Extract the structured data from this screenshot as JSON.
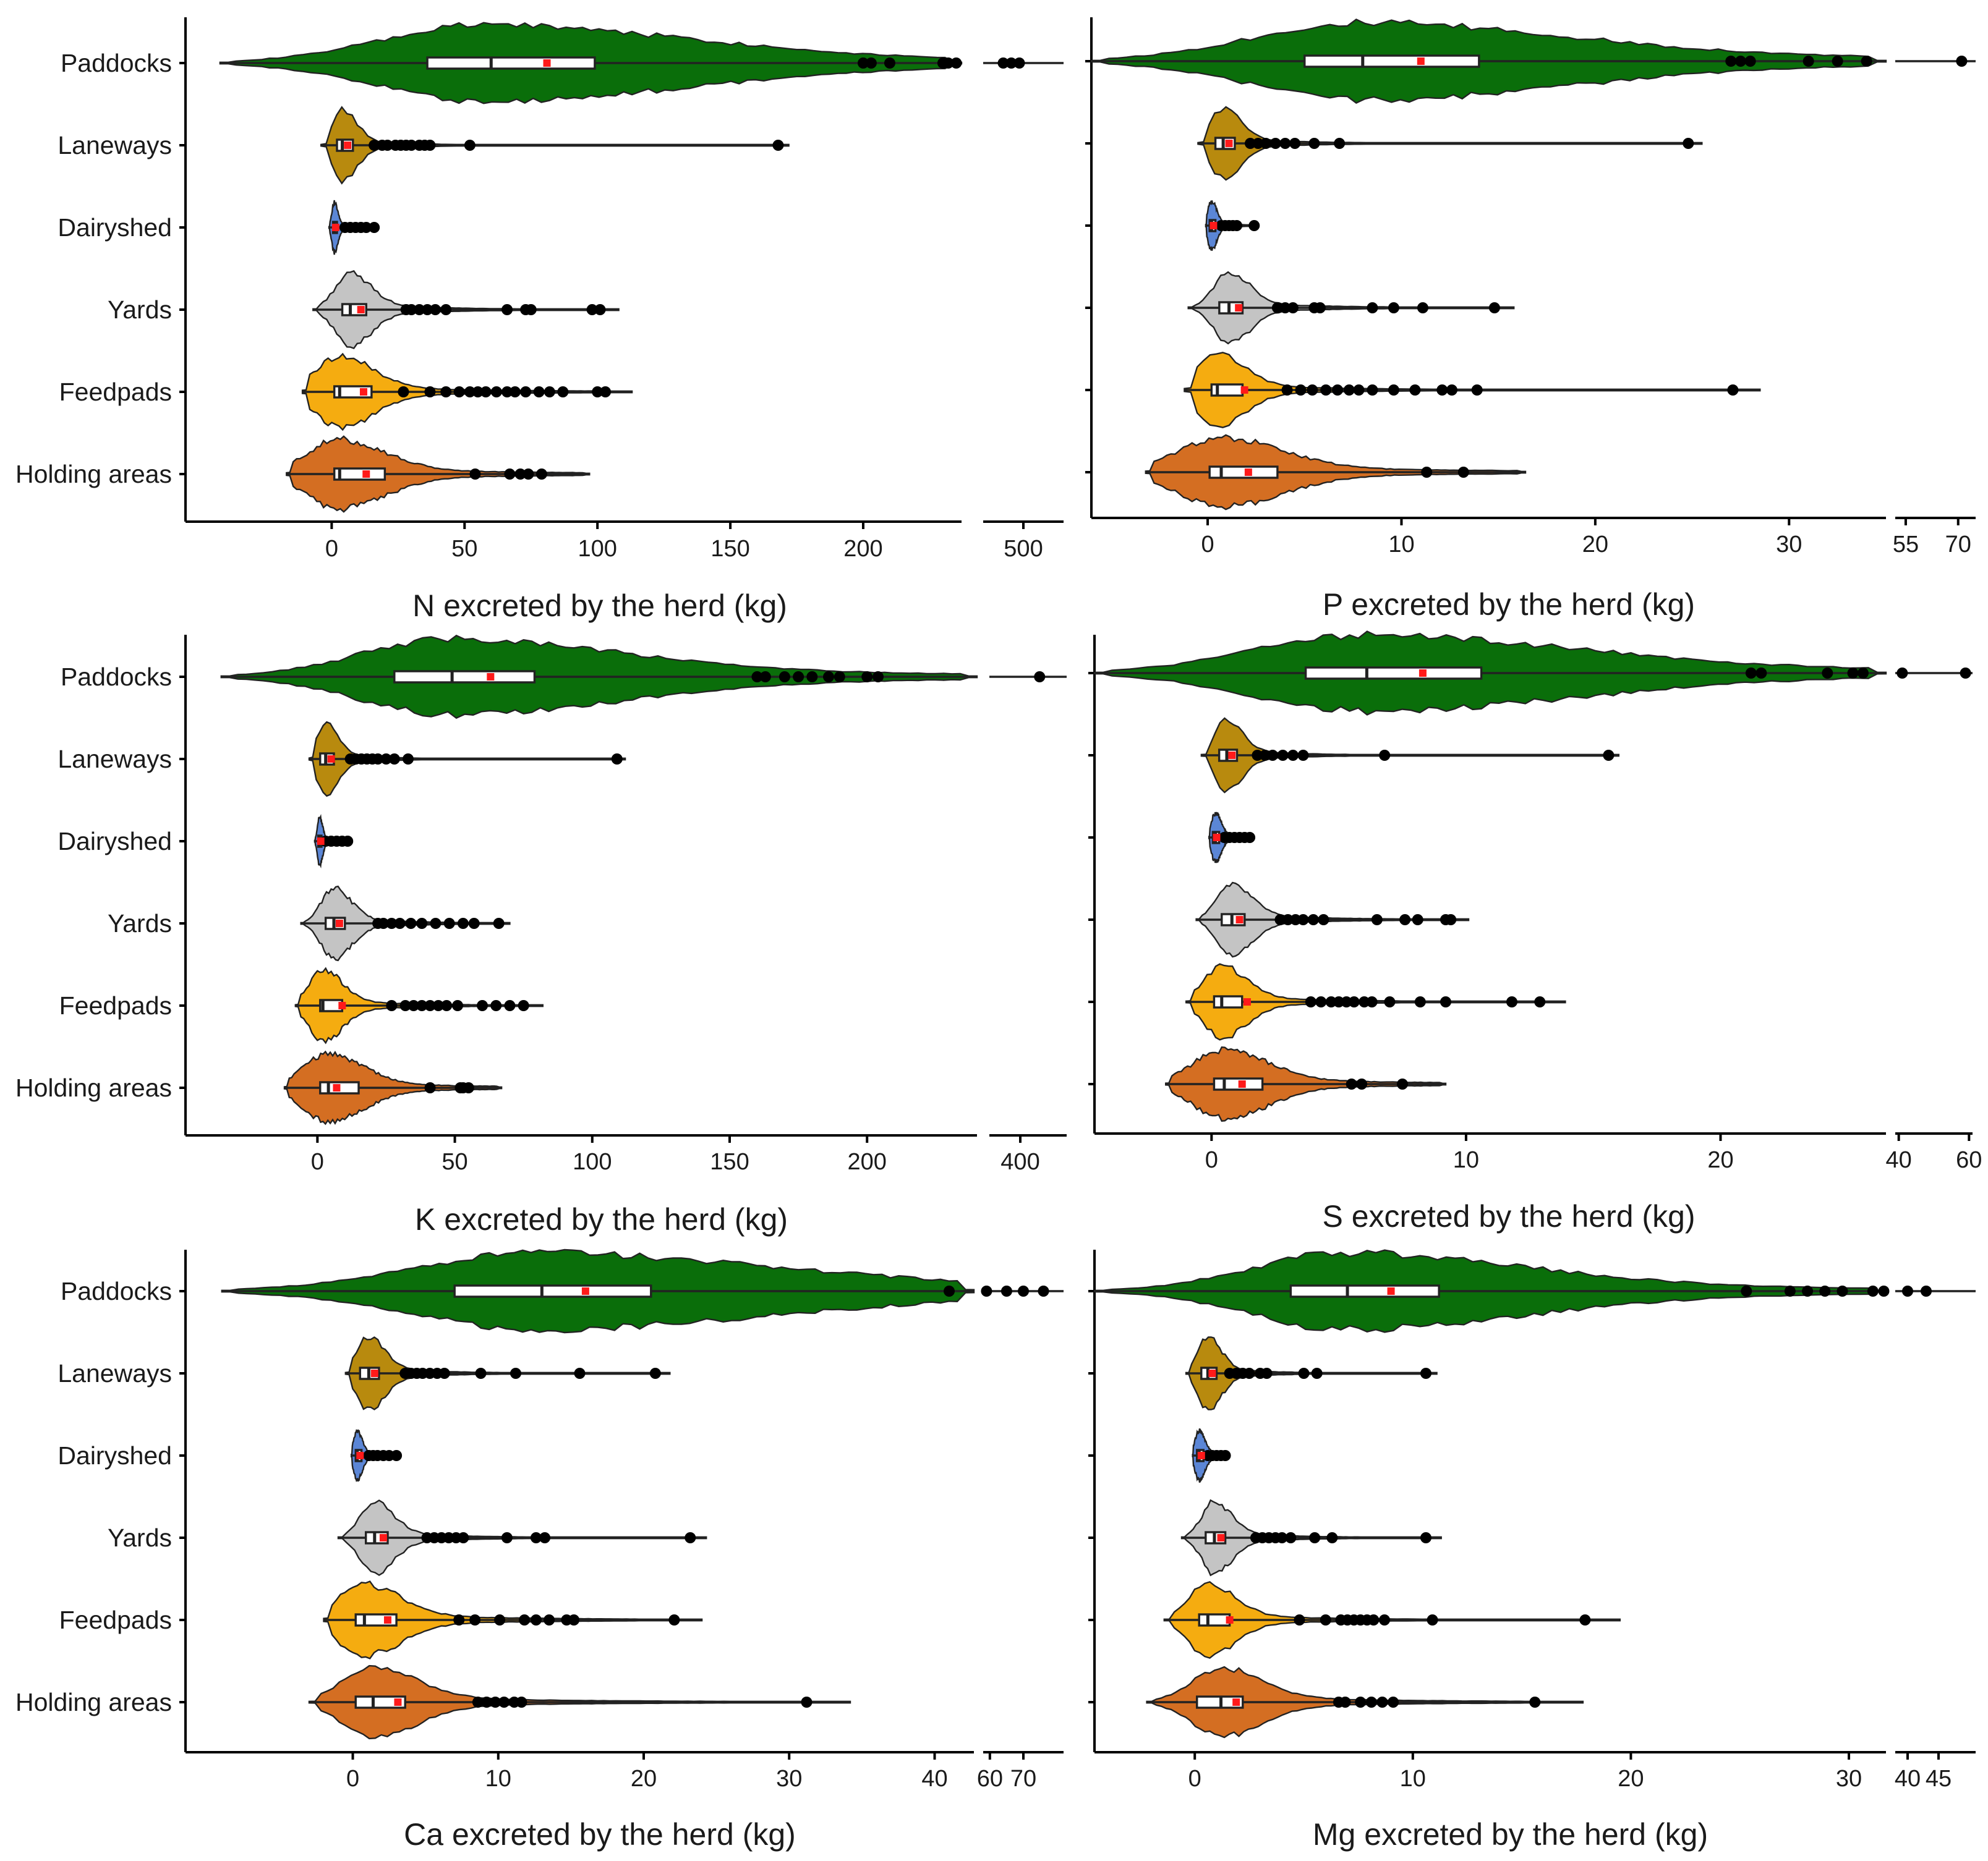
{
  "figure": {
    "colors": {
      "Paddocks": "#0a6e0a",
      "Laneways": "#b88a0e",
      "Dairyshed": "#5b86d6",
      "Yards": "#c4c4c4",
      "Feedpads": "#f5ac10",
      "Holding areas": "#d46e22"
    }
  },
  "chart_data": [
    {
      "type": "violin",
      "xlabel": "N excreted by the herd (kg)",
      "categories": [
        "Paddocks",
        "Laneways",
        "Dairyshed",
        "Yards",
        "Feedpads",
        "Holding areas"
      ],
      "xlim": [
        -55,
        237
      ],
      "xticks": [
        0,
        50,
        100,
        150,
        200
      ],
      "break": {
        "ticks": [
          500
        ],
        "xlim": [
          490,
          510
        ]
      },
      "series": [
        {
          "category": "Paddocks",
          "q1": 36,
          "median": 60,
          "q3": 99,
          "mean": 81,
          "violin_range": [
            -42,
            238
          ],
          "outliers": [
            200,
            203,
            210,
            230,
            232,
            235,
            495,
            497,
            499
          ]
        },
        {
          "category": "Laneways",
          "q1": 2,
          "median": 4,
          "q3": 8,
          "mean": 6,
          "violin_range": [
            -4,
            172
          ],
          "outliers": [
            16,
            19,
            21,
            24,
            26,
            28,
            30,
            33,
            35,
            37,
            52,
            168
          ]
        },
        {
          "category": "Dairyshed",
          "q1": 0.5,
          "median": 1,
          "q3": 2,
          "mean": 1.5,
          "violin_range": [
            -1,
            17
          ],
          "outliers": [
            5,
            7,
            9,
            11,
            13,
            16
          ]
        },
        {
          "category": "Yards",
          "q1": 4,
          "median": 7,
          "q3": 13,
          "mean": 11,
          "violin_range": [
            -7,
            108
          ],
          "outliers": [
            28,
            30,
            33,
            36,
            39,
            43,
            66,
            73,
            75,
            98,
            101
          ]
        },
        {
          "category": "Feedpads",
          "q1": 1,
          "median": 3,
          "q3": 15,
          "mean": 12,
          "violin_range": [
            -11,
            113
          ],
          "outliers": [
            27,
            37,
            43,
            48,
            52,
            55,
            58,
            62,
            66,
            69,
            73,
            78,
            82,
            87,
            100,
            103
          ]
        },
        {
          "category": "Holding areas",
          "q1": 1,
          "median": 3,
          "q3": 20,
          "mean": 13,
          "violin_range": [
            -17,
            97
          ],
          "outliers": [
            54,
            67,
            71,
            74,
            79
          ]
        }
      ]
    },
    {
      "type": "violin",
      "xlabel": "P excreted by the herd (kg)",
      "categories": [
        "Paddocks",
        "Laneways",
        "Dairyshed",
        "Yards",
        "Feedpads",
        "Holding areas"
      ],
      "xlim": [
        -6,
        35
      ],
      "xticks": [
        0,
        10,
        20,
        30
      ],
      "break": {
        "ticks": [
          55,
          70
        ],
        "xlim": [
          52,
          75
        ]
      },
      "series": [
        {
          "category": "Paddocks",
          "q1": 5,
          "median": 8,
          "q3": 14,
          "mean": 11,
          "violin_range": [
            -6,
            35
          ],
          "outliers": [
            27,
            27.5,
            28,
            31,
            32.5,
            34,
            71
          ]
        },
        {
          "category": "Laneways",
          "q1": 0.4,
          "median": 0.8,
          "q3": 1.4,
          "mean": 1.1,
          "violin_range": [
            -0.5,
            25.5
          ],
          "outliers": [
            2.2,
            2.6,
            3.0,
            3.5,
            4.0,
            4.5,
            5.5,
            6.8,
            24.8
          ]
        },
        {
          "category": "Dairyshed",
          "q1": 0.1,
          "median": 0.2,
          "q3": 0.4,
          "mean": 0.3,
          "violin_range": [
            -0.1,
            2.5
          ],
          "outliers": [
            0.7,
            0.9,
            1.1,
            1.3,
            1.5,
            2.4
          ]
        },
        {
          "category": "Yards",
          "q1": 0.6,
          "median": 1.1,
          "q3": 1.8,
          "mean": 1.6,
          "violin_range": [
            -1,
            15.8
          ],
          "outliers": [
            3.6,
            4.0,
            4.4,
            5.5,
            5.8,
            8.5,
            9.6,
            11.1,
            14.8
          ]
        },
        {
          "category": "Feedpads",
          "q1": 0.2,
          "median": 0.5,
          "q3": 1.8,
          "mean": 1.9,
          "violin_range": [
            -1.2,
            28.5
          ],
          "outliers": [
            4.1,
            4.8,
            5.4,
            6.1,
            6.7,
            7.3,
            7.8,
            8.5,
            9.6,
            10.7,
            12.1,
            12.6,
            13.9,
            27.1
          ]
        },
        {
          "category": "Holding areas",
          "q1": 0.1,
          "median": 0.7,
          "q3": 3.6,
          "mean": 2.1,
          "violin_range": [
            -3.2,
            16.4
          ],
          "outliers": [
            11.3,
            13.2
          ]
        }
      ]
    },
    {
      "type": "violin",
      "xlabel": "K excreted by the herd (kg)",
      "categories": [
        "Paddocks",
        "Laneways",
        "Dairyshed",
        "Yards",
        "Feedpads",
        "Holding areas"
      ],
      "xlim": [
        -48,
        240
      ],
      "xticks": [
        0,
        50,
        100,
        150,
        200
      ],
      "break": {
        "ticks": [
          400
        ],
        "xlim": [
          392,
          412
        ]
      },
      "series": [
        {
          "category": "Paddocks",
          "q1": 28,
          "median": 49,
          "q3": 79,
          "mean": 63,
          "violin_range": [
            -35,
            240
          ],
          "outliers": [
            160,
            163,
            170,
            175,
            180,
            186,
            190,
            200,
            204,
            405
          ]
        },
        {
          "category": "Laneways",
          "q1": 1,
          "median": 3,
          "q3": 6,
          "mean": 5,
          "violin_range": [
            -3,
            112
          ],
          "outliers": [
            12,
            14,
            16,
            18,
            20,
            22,
            25,
            28,
            33,
            109
          ]
        },
        {
          "category": "Dairyshed",
          "q1": 0.3,
          "median": 0.8,
          "q3": 1.5,
          "mean": 1.2,
          "violin_range": [
            -1,
            12
          ],
          "outliers": [
            3,
            5,
            7,
            9,
            11
          ]
        },
        {
          "category": "Yards",
          "q1": 3,
          "median": 6,
          "q3": 10,
          "mean": 8,
          "violin_range": [
            -6,
            70
          ],
          "outliers": [
            22,
            24,
            27,
            30,
            34,
            38,
            43,
            48,
            53,
            57,
            66
          ]
        },
        {
          "category": "Feedpads",
          "q1": 1,
          "median": 2,
          "q3": 9,
          "mean": 9,
          "violin_range": [
            -8,
            82
          ],
          "outliers": [
            27,
            32,
            35,
            38,
            41,
            44,
            47,
            51,
            60,
            65,
            70,
            75
          ]
        },
        {
          "category": "Holding areas",
          "q1": 1,
          "median": 4,
          "q3": 15,
          "mean": 7,
          "violin_range": [
            -12,
            67
          ],
          "outliers": [
            41,
            52,
            53,
            55
          ]
        }
      ]
    },
    {
      "type": "violin",
      "xlabel": "S excreted by the herd (kg)",
      "categories": [
        "Paddocks",
        "Laneways",
        "Dairyshed",
        "Yards",
        "Feedpads",
        "Holding areas"
      ],
      "xlim": [
        -4.6,
        26.5
      ],
      "xticks": [
        0,
        10,
        20
      ],
      "break": {
        "ticks": [
          40,
          60
        ],
        "xlim": [
          39,
          61
        ]
      },
      "series": [
        {
          "category": "Paddocks",
          "q1": 3.7,
          "median": 6.1,
          "q3": 10.6,
          "mean": 8.3,
          "violin_range": [
            -4.6,
            26.5
          ],
          "outliers": [
            21.2,
            21.6,
            24.2,
            25.2,
            25.6,
            41,
            59
          ]
        },
        {
          "category": "Laneways",
          "q1": 0.3,
          "median": 0.6,
          "q3": 1.0,
          "mean": 0.8,
          "violin_range": [
            -0.4,
            16
          ],
          "outliers": [
            1.8,
            2.1,
            2.4,
            2.8,
            3.2,
            3.6,
            6.8,
            15.6
          ]
        },
        {
          "category": "Dairyshed",
          "q1": 0.05,
          "median": 0.15,
          "q3": 0.3,
          "mean": 0.2,
          "violin_range": [
            -0.1,
            1.6
          ],
          "outliers": [
            0.5,
            0.7,
            0.9,
            1.1,
            1.3,
            1.5
          ]
        },
        {
          "category": "Yards",
          "q1": 0.4,
          "median": 0.8,
          "q3": 1.3,
          "mean": 1.1,
          "violin_range": [
            -0.6,
            10.1
          ],
          "outliers": [
            2.7,
            3.0,
            3.3,
            3.6,
            4.0,
            4.4,
            6.5,
            7.6,
            8.1,
            9.2,
            9.4
          ]
        },
        {
          "category": "Feedpads",
          "q1": 0.1,
          "median": 0.4,
          "q3": 1.2,
          "mean": 1.4,
          "violin_range": [
            -1,
            13.9
          ],
          "outliers": [
            3.9,
            4.3,
            4.7,
            5.0,
            5.3,
            5.6,
            6.0,
            6.3,
            7.0,
            8.2,
            9.2,
            11.8,
            12.9
          ]
        },
        {
          "category": "Holding areas",
          "q1": 0.1,
          "median": 0.5,
          "q3": 2.0,
          "mean": 1.2,
          "violin_range": [
            -1.8,
            9.2
          ],
          "outliers": [
            5.5,
            5.9,
            7.5
          ]
        }
      ]
    },
    {
      "type": "violin",
      "xlabel": "Ca excreted by the herd (kg)",
      "categories": [
        "Paddocks",
        "Laneways",
        "Dairyshed",
        "Yards",
        "Feedpads",
        "Holding areas"
      ],
      "xlim": [
        -11.5,
        42.7
      ],
      "xticks": [
        0,
        10,
        20,
        30,
        40
      ],
      "break": {
        "ticks": [
          60,
          70
        ],
        "xlim": [
          58,
          82
        ]
      },
      "series": [
        {
          "category": "Paddocks",
          "q1": 7,
          "median": 13,
          "q3": 20.5,
          "mean": 16,
          "violin_range": [
            -9,
            42.7
          ],
          "outliers": [
            41,
            59,
            65,
            70,
            76
          ]
        },
        {
          "category": "Laneways",
          "q1": 0.5,
          "median": 1.1,
          "q3": 1.8,
          "mean": 1.5,
          "violin_range": [
            -0.5,
            21.8
          ],
          "outliers": [
            3.6,
            4.0,
            4.4,
            4.8,
            5.3,
            5.8,
            6.3,
            8.8,
            11.2,
            15.6,
            20.8
          ]
        },
        {
          "category": "Dairyshed",
          "q1": 0.2,
          "median": 0.3,
          "q3": 0.6,
          "mean": 0.5,
          "violin_range": [
            -0.1,
            3.1
          ],
          "outliers": [
            1.1,
            1.4,
            1.7,
            2.1,
            2.5,
            3.0
          ]
        },
        {
          "category": "Yards",
          "q1": 0.9,
          "median": 1.5,
          "q3": 2.4,
          "mean": 2.1,
          "violin_range": [
            -1,
            24.3
          ],
          "outliers": [
            5.1,
            5.6,
            6.1,
            6.6,
            7.1,
            7.6,
            10.6,
            12.6,
            13.2,
            23.2
          ]
        },
        {
          "category": "Feedpads",
          "q1": 0.2,
          "median": 0.8,
          "q3": 3.0,
          "mean": 2.4,
          "violin_range": [
            -2,
            24
          ],
          "outliers": [
            7.3,
            8.4,
            10.1,
            11.8,
            12.6,
            13.5,
            14.7,
            15.2,
            22.1
          ]
        },
        {
          "category": "Holding areas",
          "q1": 0.2,
          "median": 1.4,
          "q3": 3.6,
          "mean": 3.1,
          "violin_range": [
            -3,
            34.2
          ],
          "outliers": [
            8.6,
            9.2,
            9.8,
            10.4,
            11.1,
            11.6,
            31.2
          ]
        }
      ]
    },
    {
      "type": "violin",
      "xlabel": "Mg excreted by the herd (kg)",
      "categories": [
        "Paddocks",
        "Laneways",
        "Dairyshed",
        "Yards",
        "Feedpads",
        "Holding areas"
      ],
      "xlim": [
        -4.6,
        31.7
      ],
      "xticks": [
        0,
        10,
        20,
        30
      ],
      "break": {
        "ticks": [
          40,
          45
        ],
        "xlim": [
          38,
          51
        ]
      },
      "series": [
        {
          "category": "Paddocks",
          "q1": 4.4,
          "median": 7.0,
          "q3": 11.2,
          "mean": 9.0,
          "violin_range": [
            -4.6,
            31.7
          ],
          "outliers": [
            25.3,
            27.3,
            28.1,
            28.9,
            29.7,
            31.1,
            31.6,
            40,
            43
          ]
        },
        {
          "category": "Laneways",
          "q1": 0.3,
          "median": 0.6,
          "q3": 1.0,
          "mean": 0.8,
          "violin_range": [
            -0.4,
            11.1
          ],
          "outliers": [
            1.6,
            1.9,
            2.2,
            2.5,
            3.0,
            3.3,
            5.0,
            5.6,
            10.6
          ]
        },
        {
          "category": "Dairyshed",
          "q1": 0.1,
          "median": 0.2,
          "q3": 0.4,
          "mean": 0.3,
          "violin_range": [
            -0.1,
            1.6
          ],
          "outliers": [
            0.6,
            0.8,
            1.0,
            1.2,
            1.4
          ]
        },
        {
          "category": "Yards",
          "q1": 0.5,
          "median": 0.9,
          "q3": 1.4,
          "mean": 1.2,
          "violin_range": [
            -0.6,
            11.3
          ],
          "outliers": [
            2.8,
            3.1,
            3.4,
            3.7,
            4.0,
            4.4,
            5.5,
            6.3,
            10.6
          ]
        },
        {
          "category": "Feedpads",
          "q1": 0.2,
          "median": 0.6,
          "q3": 1.6,
          "mean": 1.6,
          "violin_range": [
            -1.4,
            19.5
          ],
          "outliers": [
            4.8,
            6.0,
            6.7,
            7.0,
            7.3,
            7.6,
            7.9,
            8.2,
            8.7,
            10.9,
            17.9
          ]
        },
        {
          "category": "Holding areas",
          "q1": 0.1,
          "median": 1.2,
          "q3": 2.2,
          "mean": 1.9,
          "violin_range": [
            -2.2,
            17.8
          ],
          "outliers": [
            6.6,
            6.9,
            7.6,
            8.1,
            8.6,
            9.1,
            15.6
          ]
        }
      ]
    }
  ]
}
